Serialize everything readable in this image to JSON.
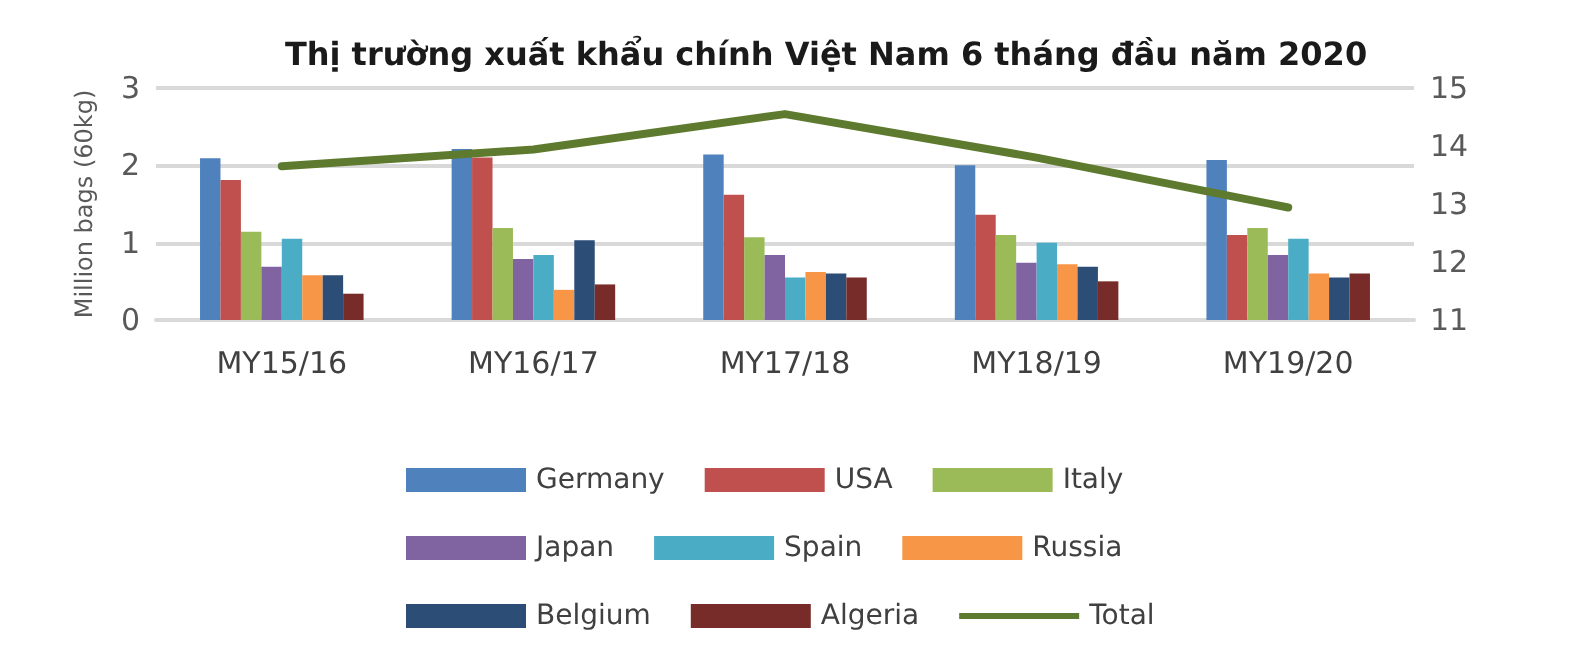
{
  "chart_data": {
    "type": "bar",
    "title": "Thị trường xuất khẩu chính Việt Nam 6 tháng đầu năm 2020",
    "ylabel": "Million bags (60kg)",
    "categories": [
      "MY15/16",
      "MY16/17",
      "MY17/18",
      "MY18/19",
      "MY19/20"
    ],
    "series": [
      {
        "name": "Germany",
        "color": "#4f81bd",
        "values": [
          2.09,
          2.21,
          2.14,
          2.0,
          2.07
        ]
      },
      {
        "name": "USA",
        "color": "#c0504d",
        "values": [
          1.81,
          2.1,
          1.62,
          1.36,
          1.1
        ]
      },
      {
        "name": "Italy",
        "color": "#9bbb59",
        "values": [
          1.14,
          1.19,
          1.07,
          1.1,
          1.19
        ]
      },
      {
        "name": "Japan",
        "color": "#8064a2",
        "values": [
          0.69,
          0.79,
          0.84,
          0.74,
          0.84
        ]
      },
      {
        "name": "Spain",
        "color": "#4bacc6",
        "values": [
          1.05,
          0.84,
          0.55,
          1.0,
          1.05
        ]
      },
      {
        "name": "Russia",
        "color": "#f79646",
        "values": [
          0.58,
          0.39,
          0.62,
          0.72,
          0.6
        ]
      },
      {
        "name": "Belgium",
        "color": "#2c4d75",
        "values": [
          0.58,
          1.03,
          0.6,
          0.69,
          0.55
        ]
      },
      {
        "name": "Algeria",
        "color": "#772c2a",
        "values": [
          0.34,
          0.46,
          0.55,
          0.5,
          0.6
        ]
      },
      {
        "name": "Total",
        "type": "line",
        "axis": "y2",
        "color": "#5e7a2e",
        "values": [
          13.65,
          13.94,
          14.55,
          13.8,
          12.94
        ]
      }
    ],
    "ylim": [
      0,
      3
    ],
    "yticks": [
      0,
      1,
      2,
      3
    ],
    "y2lim": [
      11,
      15
    ],
    "y2ticks": [
      11,
      12,
      13,
      14,
      15
    ],
    "grid": "y",
    "legend": "bottom",
    "marker": "none"
  }
}
